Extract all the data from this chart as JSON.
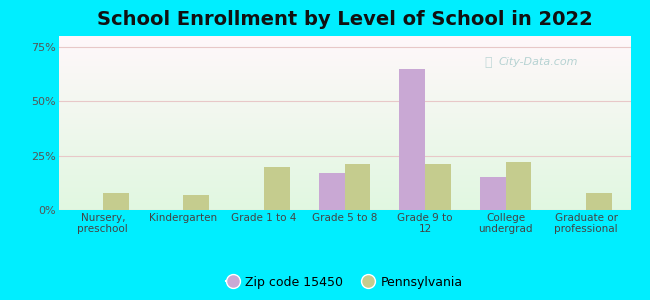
{
  "title": "School Enrollment by Level of School in 2022",
  "categories": [
    "Nursery,\npreschool",
    "Kindergarten",
    "Grade 1 to 4",
    "Grade 5 to 8",
    "Grade 9 to\n12",
    "College\nundergrad",
    "Graduate or\nprofessional"
  ],
  "zip_values": [
    0,
    0,
    0,
    17,
    65,
    15,
    0
  ],
  "pa_values": [
    8,
    7,
    20,
    21,
    21,
    22,
    8
  ],
  "zip_color": "#c9a8d4",
  "pa_color": "#c5cc8e",
  "ylim": [
    0,
    80
  ],
  "yticks": [
    0,
    25,
    50,
    75
  ],
  "ytick_labels": [
    "0%",
    "25%",
    "50%",
    "75%"
  ],
  "title_fontsize": 14,
  "legend_label_zip": "Zip code 15450",
  "legend_label_pa": "Pennsylvania",
  "background_outer": "#00eeff",
  "watermark": "City-Data.com"
}
